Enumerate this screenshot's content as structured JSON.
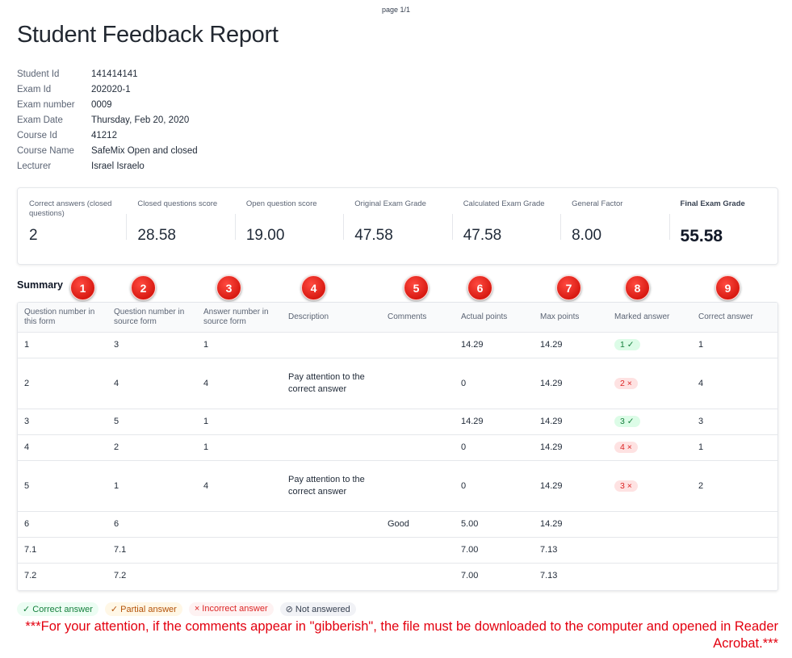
{
  "page_label": "page 1/1",
  "title": "Student Feedback Report",
  "details": [
    {
      "label": "Student Id",
      "value": "141414141"
    },
    {
      "label": "Exam Id",
      "value": "202020-1"
    },
    {
      "label": "Exam number",
      "value": "0009"
    },
    {
      "label": "Exam Date",
      "value": "Thursday, Feb 20, 2020"
    },
    {
      "label": "Course Id",
      "value": "41212"
    },
    {
      "label": "Course Name",
      "value": "SafeMix Open and closed"
    },
    {
      "label": "Lecturer",
      "value": "Israel Israelo"
    }
  ],
  "stats": [
    {
      "label": "Correct answers (closed questions)",
      "value": "2"
    },
    {
      "label": "Closed questions score",
      "value": "28.58"
    },
    {
      "label": "Open question score",
      "value": "19.00"
    },
    {
      "label": "Original Exam Grade",
      "value": "47.58"
    },
    {
      "label": "Calculated Exam Grade",
      "value": "47.58"
    },
    {
      "label": "General Factor",
      "value": "8.00"
    },
    {
      "label": "Final Exam Grade",
      "value": "55.58"
    }
  ],
  "summary_title": "Summary",
  "markers": [
    "1",
    "2",
    "3",
    "4",
    "5",
    "6",
    "7",
    "8",
    "9"
  ],
  "table": {
    "headers": [
      "Question number in this form",
      "Question number in source form",
      "Answer number in source form",
      "Description",
      "Comments",
      "Actual points",
      "Max points",
      "Marked answer",
      "Correct answer"
    ],
    "rows": [
      {
        "q": "1",
        "src": "3",
        "ans": "1",
        "desc": "",
        "comments": "",
        "actual": "14.29",
        "max": "14.29",
        "marked": "1 ✓",
        "correct": "1"
      },
      {
        "q": "2",
        "src": "4",
        "ans": "4",
        "desc": "Pay attention to the correct answer",
        "comments": "",
        "actual": "0",
        "max": "14.29",
        "marked": "2 ×",
        "correct": "4"
      },
      {
        "q": "3",
        "src": "5",
        "ans": "1",
        "desc": "",
        "comments": "",
        "actual": "14.29",
        "max": "14.29",
        "marked": "3 ✓",
        "correct": "3"
      },
      {
        "q": "4",
        "src": "2",
        "ans": "1",
        "desc": "",
        "comments": "",
        "actual": "0",
        "max": "14.29",
        "marked": "4 ×",
        "correct": "1"
      },
      {
        "q": "5",
        "src": "1",
        "ans": "4",
        "desc": "Pay attention to the correct answer",
        "comments": "",
        "actual": "0",
        "max": "14.29",
        "marked": "3 ×",
        "correct": "2"
      },
      {
        "q": "6",
        "src": "6",
        "ans": "",
        "desc": "",
        "comments": "Good",
        "actual": "5.00",
        "max": "14.29",
        "marked": "",
        "correct": ""
      },
      {
        "q": "7.1",
        "src": "7.1",
        "ans": "",
        "desc": "",
        "comments": "",
        "actual": "7.00",
        "max": "7.13",
        "marked": "",
        "correct": ""
      },
      {
        "q": "7.2",
        "src": "7.2",
        "ans": "",
        "desc": "",
        "comments": "",
        "actual": "7.00",
        "max": "7.13",
        "marked": "",
        "correct": ""
      }
    ]
  },
  "legend": {
    "correct": "✓ Correct answer",
    "partial": "✓ Partial answer",
    "incorrect": "× Incorrect answer",
    "not_answered": "⊘ Not answered"
  },
  "notice": "***For your attention, if the comments appear in \"gibberish\", the file must be downloaded to the computer and opened in Reader Acrobat.***",
  "colors": {
    "accent_red": "#e3000f",
    "correct_green": "#15803d",
    "incorrect_red": "#dc2626"
  }
}
